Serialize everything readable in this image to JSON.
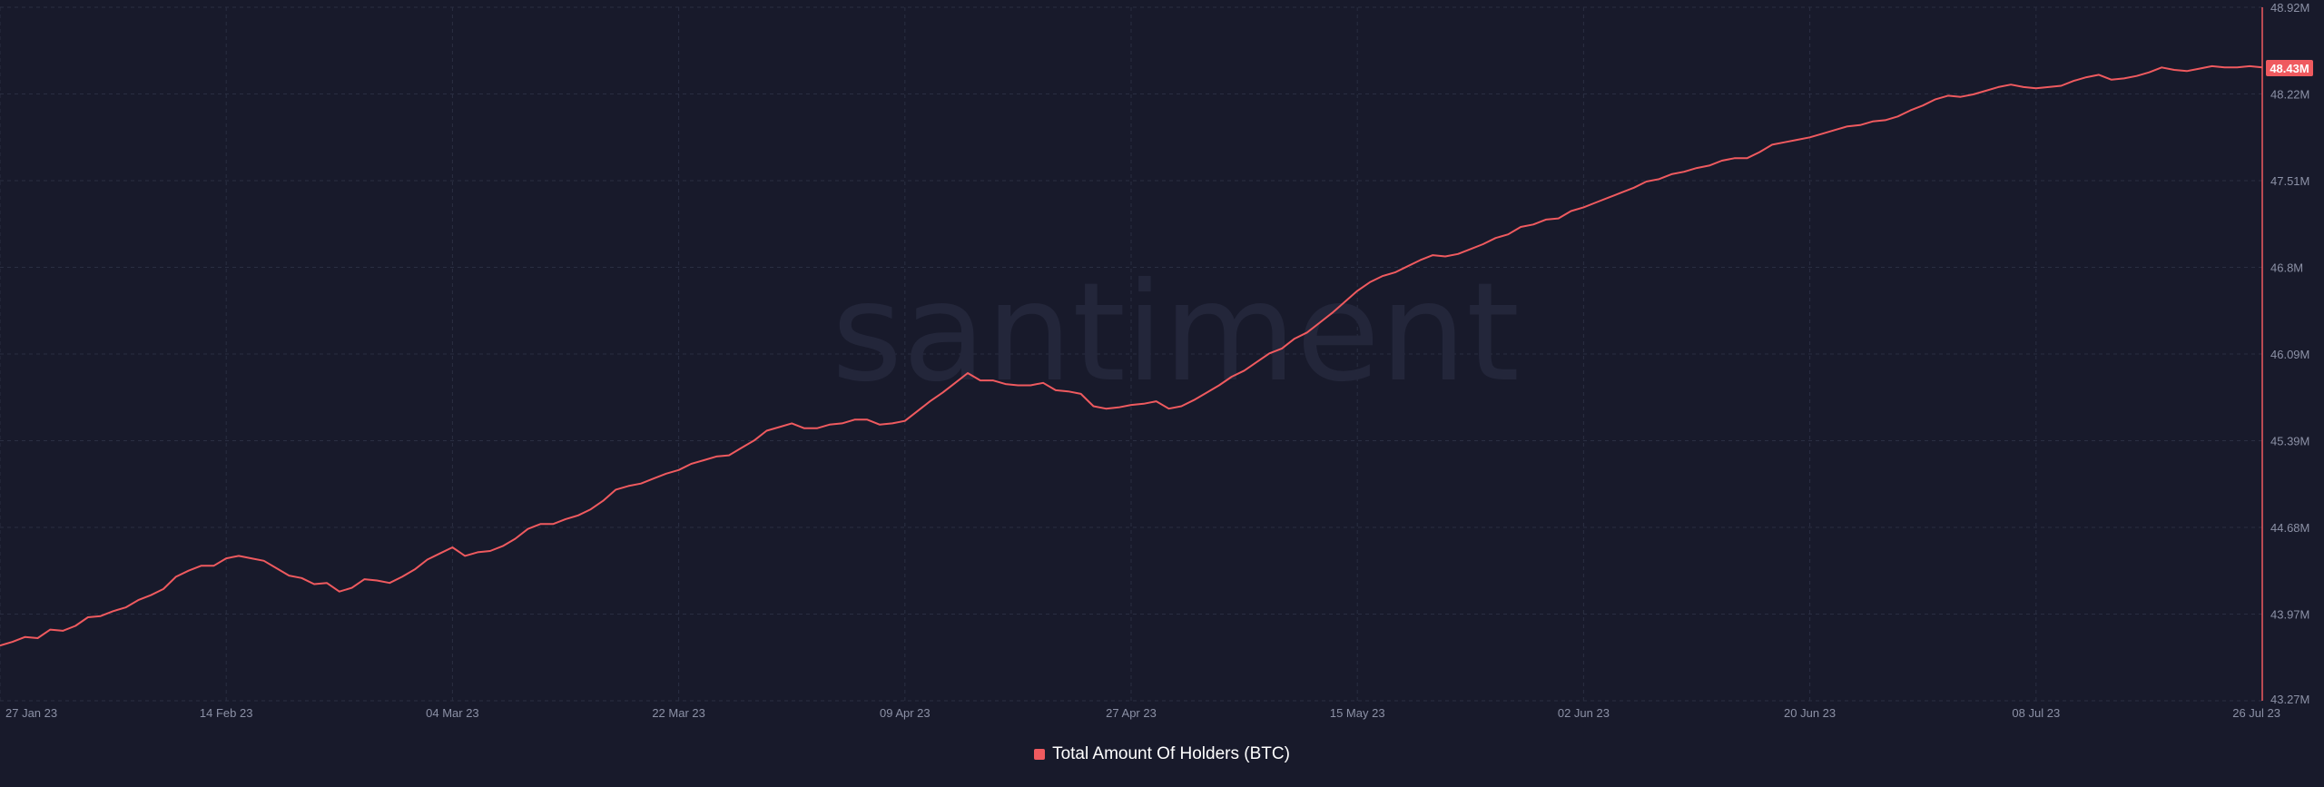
{
  "watermark": "santiment",
  "colors": {
    "background": "#181a2b",
    "line": "#ef5a5f",
    "grid": "#2a2e42",
    "axis_text": "#8c91a6",
    "watermark": "#23263a",
    "badge_text": "#ffffff"
  },
  "chart_data": {
    "type": "line",
    "title": "",
    "xlabel": "",
    "ylabel": "",
    "x_ticks": [
      "27 Jan 23",
      "14 Feb 23",
      "04 Mar 23",
      "22 Mar 23",
      "09 Apr 23",
      "27 Apr 23",
      "15 May 23",
      "02 Jun 23",
      "20 Jun 23",
      "08 Jul 23",
      "26 Jul 23"
    ],
    "y_ticks": [
      "48.92M",
      "48.22M",
      "47.51M",
      "46.8M",
      "46.09M",
      "45.39M",
      "44.68M",
      "43.97M",
      "43.27M"
    ],
    "ylim": [
      43.27,
      48.92
    ],
    "y_unit": "M",
    "x_range_days": [
      0,
      180
    ],
    "grid": true,
    "legend_position": "bottom-center",
    "last_value_label": "48.43M",
    "series": [
      {
        "name": "Total Amount Of Holders (BTC)",
        "color": "#ef5a5f",
        "x": [
          0,
          1,
          2,
          3,
          4,
          5,
          6,
          7,
          8,
          9,
          10,
          11,
          12,
          13,
          14,
          15,
          16,
          17,
          18,
          19,
          20,
          21,
          22,
          23,
          24,
          25,
          26,
          27,
          28,
          29,
          30,
          31,
          32,
          33,
          34,
          35,
          36,
          37,
          38,
          39,
          40,
          41,
          42,
          43,
          44,
          45,
          46,
          47,
          48,
          49,
          50,
          51,
          52,
          53,
          54,
          55,
          56,
          57,
          58,
          59,
          60,
          61,
          62,
          63,
          64,
          65,
          66,
          67,
          68,
          69,
          70,
          71,
          72,
          73,
          74,
          75,
          76,
          77,
          78,
          79,
          80,
          81,
          82,
          83,
          84,
          85,
          86,
          87,
          88,
          89,
          90,
          91,
          92,
          93,
          94,
          95,
          96,
          97,
          98,
          99,
          100,
          101,
          102,
          103,
          104,
          105,
          106,
          107,
          108,
          109,
          110,
          111,
          112,
          113,
          114,
          115,
          116,
          117,
          118,
          119,
          120,
          121,
          122,
          123,
          124,
          125,
          126,
          127,
          128,
          129,
          130,
          131,
          132,
          133,
          134,
          135,
          136,
          137,
          138,
          139,
          140,
          141,
          142,
          143,
          144,
          145,
          146,
          147,
          148,
          149,
          150,
          151,
          152,
          153,
          154,
          155,
          156,
          157,
          158,
          159,
          160,
          161,
          162,
          163,
          164,
          165,
          166,
          167,
          168,
          169,
          170,
          171,
          172,
          173,
          174,
          175,
          176,
          177,
          178,
          179,
          180
        ],
        "values": [
          43.72,
          43.75,
          43.79,
          43.78,
          43.85,
          43.84,
          43.88,
          43.95,
          43.96,
          44.0,
          44.03,
          44.09,
          44.13,
          44.18,
          44.28,
          44.33,
          44.37,
          44.37,
          44.43,
          44.45,
          44.43,
          44.41,
          44.35,
          44.29,
          44.27,
          44.22,
          44.23,
          44.16,
          44.19,
          44.26,
          44.25,
          44.23,
          44.28,
          44.34,
          44.42,
          44.47,
          44.52,
          44.45,
          44.48,
          44.49,
          44.53,
          44.59,
          44.67,
          44.71,
          44.71,
          44.75,
          44.78,
          44.83,
          44.9,
          44.99,
          45.02,
          45.04,
          45.08,
          45.12,
          45.15,
          45.2,
          45.23,
          45.26,
          45.27,
          45.33,
          45.39,
          45.47,
          45.5,
          45.53,
          45.49,
          45.49,
          45.52,
          45.53,
          45.56,
          45.56,
          45.52,
          45.53,
          45.55,
          45.63,
          45.71,
          45.78,
          45.86,
          45.94,
          45.88,
          45.88,
          45.85,
          45.84,
          45.84,
          45.86,
          45.8,
          45.79,
          45.77,
          45.67,
          45.65,
          45.66,
          45.68,
          45.69,
          45.71,
          45.65,
          45.67,
          45.72,
          45.78,
          45.84,
          45.91,
          45.96,
          46.03,
          46.1,
          46.14,
          46.22,
          46.27,
          46.35,
          46.43,
          46.52,
          46.61,
          46.68,
          46.73,
          46.76,
          46.81,
          46.86,
          46.9,
          46.89,
          46.91,
          46.95,
          46.99,
          47.04,
          47.07,
          47.13,
          47.15,
          47.19,
          47.2,
          47.26,
          47.29,
          47.33,
          47.37,
          47.41,
          47.45,
          47.5,
          47.52,
          47.56,
          47.58,
          47.61,
          47.63,
          47.67,
          47.69,
          47.69,
          47.74,
          47.8,
          47.82,
          47.84,
          47.86,
          47.89,
          47.92,
          47.95,
          47.96,
          47.99,
          48.0,
          48.03,
          48.08,
          48.12,
          48.17,
          48.2,
          48.19,
          48.21,
          48.24,
          48.27,
          48.29,
          48.27,
          48.26,
          48.27,
          48.28,
          48.32,
          48.35,
          48.37,
          48.33,
          48.34,
          48.36,
          48.39,
          48.43,
          48.41,
          48.4,
          48.42,
          48.44,
          48.43,
          48.43,
          48.44,
          48.43
        ]
      }
    ]
  }
}
